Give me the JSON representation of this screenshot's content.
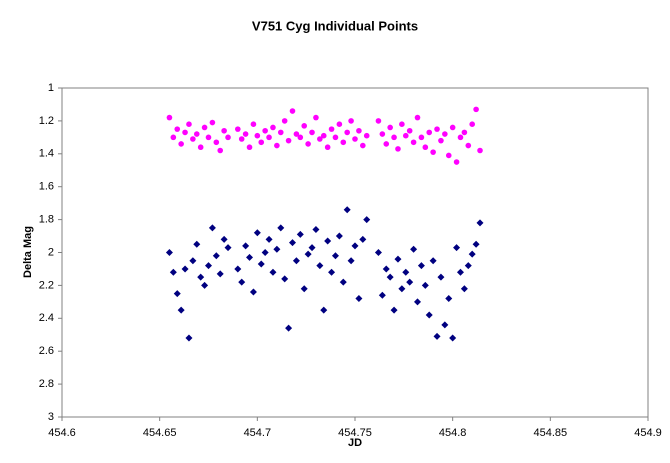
{
  "chart_data": {
    "type": "scatter",
    "title": "V751 Cyg Individual Points",
    "x_label": "JD",
    "y_label": "Delta Mag",
    "xlim": [
      454.6,
      454.9
    ],
    "xticks": [
      454.6,
      454.65,
      454.7,
      454.75,
      454.8,
      454.85,
      454.9
    ],
    "ylim": [
      1,
      3
    ],
    "y_inverted": true,
    "yticks": [
      1,
      1.2,
      1.4,
      1.6,
      1.8,
      2,
      2.2,
      2.4,
      2.6,
      2.8,
      3
    ],
    "grid": false,
    "x": [
      454.655,
      454.657,
      454.659,
      454.661,
      454.663,
      454.665,
      454.667,
      454.669,
      454.671,
      454.673,
      454.675,
      454.677,
      454.679,
      454.681,
      454.683,
      454.685,
      454.69,
      454.692,
      454.694,
      454.696,
      454.698,
      454.7,
      454.702,
      454.704,
      454.706,
      454.708,
      454.71,
      454.712,
      454.714,
      454.716,
      454.718,
      454.72,
      454.722,
      454.724,
      454.726,
      454.728,
      454.73,
      454.732,
      454.734,
      454.736,
      454.738,
      454.74,
      454.742,
      454.744,
      454.746,
      454.748,
      454.75,
      454.752,
      454.754,
      454.756,
      454.762,
      454.764,
      454.766,
      454.768,
      454.77,
      454.772,
      454.774,
      454.776,
      454.778,
      454.78,
      454.782,
      454.784,
      454.786,
      454.788,
      454.79,
      454.792,
      454.794,
      454.796,
      454.798,
      454.8,
      454.802,
      454.804,
      454.806,
      454.808,
      454.81,
      454.812,
      454.814
    ],
    "series": [
      {
        "color": "#ff00ff",
        "marker": "circle",
        "values": [
          1.18,
          1.3,
          1.25,
          1.34,
          1.27,
          1.22,
          1.31,
          1.28,
          1.36,
          1.24,
          1.3,
          1.21,
          1.33,
          1.38,
          1.26,
          1.3,
          1.25,
          1.31,
          1.28,
          1.36,
          1.22,
          1.29,
          1.33,
          1.26,
          1.3,
          1.24,
          1.35,
          1.27,
          1.2,
          1.32,
          1.14,
          1.28,
          1.3,
          1.23,
          1.34,
          1.27,
          1.18,
          1.31,
          1.29,
          1.36,
          1.25,
          1.3,
          1.22,
          1.33,
          1.27,
          1.2,
          1.31,
          1.26,
          1.35,
          1.29,
          1.2,
          1.28,
          1.34,
          1.24,
          1.3,
          1.37,
          1.22,
          1.29,
          1.26,
          1.33,
          1.18,
          1.3,
          1.36,
          1.27,
          1.39,
          1.25,
          1.32,
          1.28,
          1.41,
          1.24,
          1.45,
          1.3,
          1.27,
          1.35,
          1.22,
          1.13,
          1.38
        ]
      },
      {
        "color": "#000080",
        "marker": "diamond",
        "values": [
          2.0,
          2.12,
          2.25,
          2.35,
          2.1,
          2.52,
          2.05,
          1.95,
          2.15,
          2.2,
          2.08,
          1.85,
          2.02,
          2.13,
          1.92,
          1.97,
          2.1,
          2.18,
          1.96,
          2.03,
          2.24,
          1.88,
          2.07,
          2.0,
          1.92,
          2.12,
          1.98,
          1.85,
          2.16,
          2.46,
          1.94,
          2.05,
          1.89,
          2.22,
          2.01,
          1.97,
          1.86,
          2.08,
          2.35,
          1.93,
          2.12,
          2.02,
          1.9,
          2.18,
          1.74,
          2.05,
          1.96,
          2.28,
          1.92,
          1.8,
          2.0,
          2.26,
          2.1,
          2.15,
          2.35,
          2.04,
          2.22,
          2.12,
          2.18,
          1.98,
          2.3,
          2.08,
          2.2,
          2.38,
          2.05,
          2.51,
          2.15,
          2.44,
          2.28,
          2.52,
          1.97,
          2.12,
          2.22,
          2.08,
          2.01,
          1.95,
          1.82
        ]
      }
    ]
  }
}
